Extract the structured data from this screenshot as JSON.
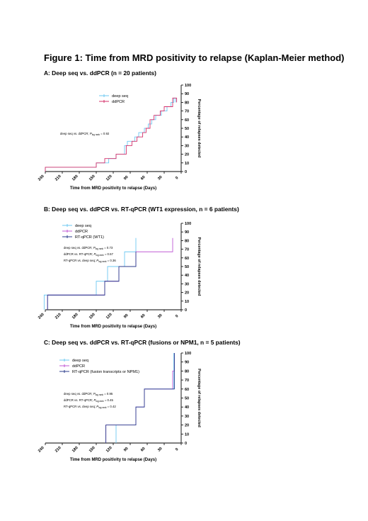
{
  "figure_title": "Figure 1: Time from MRD positivity to relapse (Kaplan-Meier method)",
  "panels": [
    {
      "title": "A: Deep seq vs. ddPCR (n = 20 patients)",
      "stats": [
        "deep seq vs. ddPCR; P log rank = 0.92"
      ]
    },
    {
      "title": "B: Deep seq vs. ddPCR vs. RT-qPCR (WT1 expression, n = 6 patients)",
      "stats": [
        "deep seq vs. ddPCR; P log rank = 0.73",
        "ddPCR vs. RT-qPCR; P log rank = 0.57",
        "RT-qPCR vs. deep seq; P log rank = 0.36"
      ]
    },
    {
      "title": "C: Deep seq vs. ddPCR vs. RT-qPCR (fusions or NPM1, n = 5 patients)",
      "stats": [
        "deep seq vs. ddPCR; P log rank = 0.95",
        "ddPCR vs. RT-qPCR; P log rank = 0.45",
        "RT-qPCR vs. deep seq; P log rank = 0.42"
      ]
    }
  ],
  "chart_data": [
    {
      "type": "line",
      "title": "A: Deep seq vs. ddPCR (n = 20 patients)",
      "xlabel": "Time from MRD positivity to relapse (Days)",
      "ylabel": "Percentage of relapses detected",
      "x_ticks": [
        240,
        210,
        180,
        150,
        120,
        90,
        60,
        30,
        0
      ],
      "y_ticks": [
        0,
        10,
        20,
        30,
        40,
        50,
        60,
        70,
        80,
        90,
        100
      ],
      "xlim": [
        240,
        0
      ],
      "ylim": [
        0,
        100
      ],
      "x_reversed": true,
      "step": true,
      "legend_position": "top-center",
      "series": [
        {
          "name": "deep seq",
          "color": "#6ec9f2",
          "x": [
            240,
            150,
            128,
            115,
            100,
            95,
            82,
            75,
            65,
            58,
            52,
            45,
            35,
            25,
            18,
            13,
            10
          ],
          "y": [
            5,
            10,
            15,
            20,
            30,
            35,
            40,
            45,
            50,
            55,
            60,
            65,
            70,
            75,
            80,
            85,
            80
          ]
        },
        {
          "name": "ddPCR",
          "color": "#d4306a",
          "x": [
            240,
            150,
            135,
            115,
            97,
            87,
            78,
            68,
            62,
            55,
            48,
            37,
            30,
            15,
            8
          ],
          "y": [
            5,
            10,
            15,
            20,
            30,
            35,
            40,
            45,
            50,
            60,
            65,
            70,
            75,
            85,
            80
          ]
        }
      ],
      "annotations": [
        "deep seq vs. ddPCR; P log rank = 0.92"
      ]
    },
    {
      "type": "line",
      "title": "B: Deep seq vs. ddPCR vs. RT-qPCR (WT1 expression, n = 6 patients)",
      "xlabel": "Time from MRD positivity to relapse (Days)",
      "ylabel": "Percentage of relapses detected",
      "x_ticks": [
        240,
        210,
        180,
        150,
        120,
        90,
        60,
        30,
        0
      ],
      "y_ticks": [
        0,
        10,
        20,
        30,
        40,
        50,
        60,
        70,
        80,
        90,
        100
      ],
      "xlim": [
        240,
        0
      ],
      "ylim": [
        0,
        100
      ],
      "x_reversed": true,
      "step": true,
      "legend_position": "top-left",
      "series": [
        {
          "name": "deep seq",
          "color": "#6ec9f2",
          "x": [
            242,
            150,
            130,
            120,
            100,
            80
          ],
          "y": [
            17,
            33,
            50,
            50,
            67,
            83
          ]
        },
        {
          "name": "ddPCR",
          "color": "#c05bd6",
          "x": [
            236,
            135,
            110,
            80,
            15
          ],
          "y": [
            17,
            33,
            50,
            67,
            83
          ]
        },
        {
          "name": "RT-qPCR (WT1)",
          "color": "#2c3e8c",
          "x": [
            236,
            135,
            110,
            80
          ],
          "y": [
            17,
            33,
            50,
            67
          ]
        }
      ],
      "annotations": [
        "deep seq vs. ddPCR; P log rank = 0.73",
        "ddPCR vs. RT-qPCR; P log rank = 0.57",
        "RT-qPCR vs. deep seq; P log rank = 0.36"
      ]
    },
    {
      "type": "line",
      "title": "C: Deep seq vs. ddPCR vs. RT-qPCR (fusions or NPM1, n = 5 patients)",
      "xlabel": "Time from MRD positivity to relapse (Days)",
      "ylabel": "Percentage of relapses detected",
      "x_ticks": [
        240,
        210,
        180,
        150,
        120,
        90,
        60,
        30,
        0
      ],
      "y_ticks": [
        0,
        10,
        20,
        30,
        40,
        50,
        60,
        70,
        80,
        90,
        100
      ],
      "xlim": [
        240,
        0
      ],
      "ylim": [
        0,
        100
      ],
      "x_reversed": true,
      "step": true,
      "legend_position": "top-left",
      "series": [
        {
          "name": "deep seq",
          "color": "#6ec9f2",
          "x": [
            115,
            95,
            80,
            65,
            28,
            13
          ],
          "y": [
            20,
            20,
            40,
            60,
            60,
            100
          ]
        },
        {
          "name": "ddPCR",
          "color": "#c05bd6",
          "x": [
            133,
            110,
            80,
            65,
            15,
            12
          ],
          "y": [
            20,
            20,
            40,
            60,
            80,
            100
          ]
        },
        {
          "name": "RT-qPCR (fusion transcripts or NPM1)",
          "color": "#2c3e8c",
          "x": [
            133,
            110,
            80,
            65,
            15,
            12
          ],
          "y": [
            20,
            20,
            40,
            60,
            60,
            100
          ]
        }
      ],
      "annotations": [
        "deep seq vs. ddPCR; P log rank = 0.95",
        "ddPCR vs. RT-qPCR; P log rank = 0.45",
        "RT-qPCR vs. deep seq; P log rank = 0.42"
      ]
    }
  ]
}
